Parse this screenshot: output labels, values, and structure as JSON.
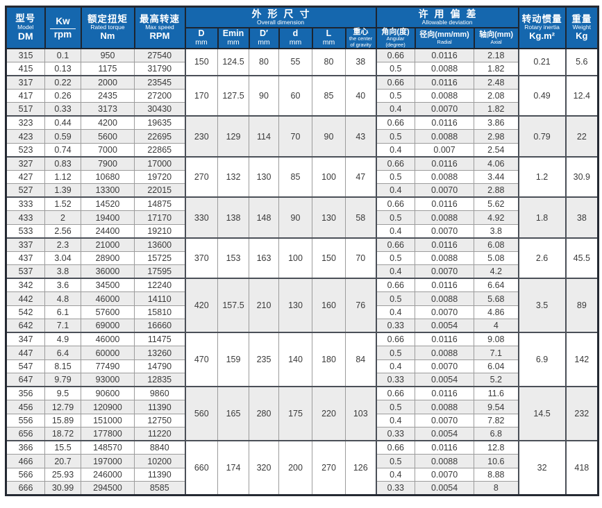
{
  "colors": {
    "header_bg": "#1567ae",
    "header_text": "#ffffff",
    "row_stripe": "#ececec",
    "grid_dark": "#4a4f57",
    "grid_light": "#9b9b9b",
    "outer_border": "#242932"
  },
  "header": {
    "model": {
      "zh": "型号",
      "en": "Model",
      "code": "DM"
    },
    "kw_top": "Kw",
    "kw_bottom": "rpm",
    "torque": {
      "zh": "额定扭矩",
      "en": "Rated torque",
      "unit": "Nm"
    },
    "maxspeed": {
      "zh": "最高转速",
      "en": "Max speed",
      "unit": "RPM"
    },
    "dims": {
      "zh": "外形尺寸",
      "en": "Overall dimension",
      "cols": [
        {
          "top": "D",
          "bottom": "mm"
        },
        {
          "top": "Emin",
          "bottom": "mm"
        },
        {
          "top": "D′",
          "bottom": "mm"
        },
        {
          "top": "d",
          "bottom": "mm"
        },
        {
          "top": "L",
          "bottom": "mm"
        },
        {
          "top": "重心",
          "bottom": "the center",
          "bottom2": "of gravity"
        }
      ]
    },
    "deviation": {
      "zh": "许用偏差",
      "en": "Allowable deviation",
      "cols": [
        {
          "top": "角向(度)",
          "bottom": "Angular",
          "bottom2": "(degree)"
        },
        {
          "top": "径向(mm/mm)",
          "bottom": "Radial"
        },
        {
          "top": "轴向(mm)",
          "bottom": "Axial"
        }
      ]
    },
    "inertia": {
      "zh": "转动惯量",
      "en": "Rotary inertia",
      "unit": "Kg.m²"
    },
    "weight": {
      "zh": "重量",
      "en": "Weight",
      "unit": "Kg"
    }
  },
  "table": {
    "groups": [
      {
        "dims": [
          "150",
          "124.5",
          "80",
          "55",
          "80",
          "38"
        ],
        "inertia": "0.21",
        "weight": "5.6",
        "rows": [
          {
            "model": "315",
            "kw": "0.1",
            "torque": "950",
            "rpm": "27540",
            "angular": "0.66",
            "radial": "0.0116",
            "axial": "2.18"
          },
          {
            "model": "415",
            "kw": "0.13",
            "torque": "1175",
            "rpm": "31790",
            "angular": "0.5",
            "radial": "0.0088",
            "axial": "1.82"
          }
        ]
      },
      {
        "dims": [
          "170",
          "127.5",
          "90",
          "60",
          "85",
          "40"
        ],
        "inertia": "0.49",
        "weight": "12.4",
        "rows": [
          {
            "model": "317",
            "kw": "0.22",
            "torque": "2000",
            "rpm": "23545",
            "angular": "0.66",
            "radial": "0.0116",
            "axial": "2.48"
          },
          {
            "model": "417",
            "kw": "0.26",
            "torque": "2435",
            "rpm": "27200",
            "angular": "0.5",
            "radial": "0.0088",
            "axial": "2.08"
          },
          {
            "model": "517",
            "kw": "0.33",
            "torque": "3173",
            "rpm": "30430",
            "angular": "0.4",
            "radial": "0.0070",
            "axial": "1.82"
          }
        ]
      },
      {
        "dims": [
          "230",
          "129",
          "114",
          "70",
          "90",
          "43"
        ],
        "inertia": "0.79",
        "weight": "22",
        "rows": [
          {
            "model": "323",
            "kw": "0.44",
            "torque": "4200",
            "rpm": "19635",
            "angular": "0.66",
            "radial": "0.0116",
            "axial": "3.86"
          },
          {
            "model": "423",
            "kw": "0.59",
            "torque": "5600",
            "rpm": "22695",
            "angular": "0.5",
            "radial": "0.0088",
            "axial": "2.98"
          },
          {
            "model": "523",
            "kw": "0.74",
            "torque": "7000",
            "rpm": "22865",
            "angular": "0.4",
            "radial": "0.007",
            "axial": "2.54"
          }
        ]
      },
      {
        "dims": [
          "270",
          "132",
          "130",
          "85",
          "100",
          "47"
        ],
        "inertia": "1.2",
        "weight": "30.9",
        "rows": [
          {
            "model": "327",
            "kw": "0.83",
            "torque": "7900",
            "rpm": "17000",
            "angular": "0.66",
            "radial": "0.0116",
            "axial": "4.06"
          },
          {
            "model": "427",
            "kw": "1.12",
            "torque": "10680",
            "rpm": "19720",
            "angular": "0.5",
            "radial": "0.0088",
            "axial": "3.44"
          },
          {
            "model": "527",
            "kw": "1.39",
            "torque": "13300",
            "rpm": "22015",
            "angular": "0.4",
            "radial": "0.0070",
            "axial": "2.88"
          }
        ]
      },
      {
        "dims": [
          "330",
          "138",
          "148",
          "90",
          "130",
          "58"
        ],
        "inertia": "1.8",
        "weight": "38",
        "rows": [
          {
            "model": "333",
            "kw": "1.52",
            "torque": "14520",
            "rpm": "14875",
            "angular": "0.66",
            "radial": "0.0116",
            "axial": "5.62"
          },
          {
            "model": "433",
            "kw": "2",
            "torque": "19400",
            "rpm": "17170",
            "angular": "0.5",
            "radial": "0.0088",
            "axial": "4.92"
          },
          {
            "model": "533",
            "kw": "2.56",
            "torque": "24400",
            "rpm": "19210",
            "angular": "0.4",
            "radial": "0.0070",
            "axial": "3.8"
          }
        ]
      },
      {
        "dims": [
          "370",
          "153",
          "163",
          "100",
          "150",
          "70"
        ],
        "inertia": "2.6",
        "weight": "45.5",
        "rows": [
          {
            "model": "337",
            "kw": "2.3",
            "torque": "21000",
            "rpm": "13600",
            "angular": "0.66",
            "radial": "0.0116",
            "axial": "6.08"
          },
          {
            "model": "437",
            "kw": "3.04",
            "torque": "28900",
            "rpm": "15725",
            "angular": "0.5",
            "radial": "0.0088",
            "axial": "5.08"
          },
          {
            "model": "537",
            "kw": "3.8",
            "torque": "36000",
            "rpm": "17595",
            "angular": "0.4",
            "radial": "0.0070",
            "axial": "4.2"
          }
        ]
      },
      {
        "dims": [
          "420",
          "157.5",
          "210",
          "130",
          "160",
          "76"
        ],
        "inertia": "3.5",
        "weight": "89",
        "rows": [
          {
            "model": "342",
            "kw": "3.6",
            "torque": "34500",
            "rpm": "12240",
            "angular": "0.66",
            "radial": "0.0116",
            "axial": "6.64"
          },
          {
            "model": "442",
            "kw": "4.8",
            "torque": "46000",
            "rpm": "14110",
            "angular": "0.5",
            "radial": "0.0088",
            "axial": "5.68"
          },
          {
            "model": "542",
            "kw": "6.1",
            "torque": "57600",
            "rpm": "15810",
            "angular": "0.4",
            "radial": "0.0070",
            "axial": "4.86"
          },
          {
            "model": "642",
            "kw": "7.1",
            "torque": "69000",
            "rpm": "16660",
            "angular": "0.33",
            "radial": "0.0054",
            "axial": "4"
          }
        ]
      },
      {
        "dims": [
          "470",
          "159",
          "235",
          "140",
          "180",
          "84"
        ],
        "inertia": "6.9",
        "weight": "142",
        "rows": [
          {
            "model": "347",
            "kw": "4.9",
            "torque": "46000",
            "rpm": "11475",
            "angular": "0.66",
            "radial": "0.0116",
            "axial": "9.08"
          },
          {
            "model": "447",
            "kw": "6.4",
            "torque": "60000",
            "rpm": "13260",
            "angular": "0.5",
            "radial": "0.0088",
            "axial": "7.1"
          },
          {
            "model": "547",
            "kw": "8.15",
            "torque": "77490",
            "rpm": "14790",
            "angular": "0.4",
            "radial": "0.0070",
            "axial": "6.04"
          },
          {
            "model": "647",
            "kw": "9.79",
            "torque": "93000",
            "rpm": "12835",
            "angular": "0.33",
            "radial": "0.0054",
            "axial": "5.2"
          }
        ]
      },
      {
        "dims": [
          "560",
          "165",
          "280",
          "175",
          "220",
          "103"
        ],
        "inertia": "14.5",
        "weight": "232",
        "rows": [
          {
            "model": "356",
            "kw": "9.5",
            "torque": "90600",
            "rpm": "9860",
            "angular": "0.66",
            "radial": "0.0116",
            "axial": "11.6"
          },
          {
            "model": "456",
            "kw": "12.79",
            "torque": "120900",
            "rpm": "11390",
            "angular": "0.5",
            "radial": "0.0088",
            "axial": "9.54"
          },
          {
            "model": "556",
            "kw": "15.89",
            "torque": "151000",
            "rpm": "12750",
            "angular": "0.4",
            "radial": "0.0070",
            "axial": "7.82"
          },
          {
            "model": "656",
            "kw": "18.72",
            "torque": "177800",
            "rpm": "11220",
            "angular": "0.33",
            "radial": "0.0054",
            "axial": "6.8"
          }
        ]
      },
      {
        "dims": [
          "660",
          "174",
          "320",
          "200",
          "270",
          "126"
        ],
        "inertia": "32",
        "weight": "418",
        "rows": [
          {
            "model": "366",
            "kw": "15.5",
            "torque": "148570",
            "rpm": "8840",
            "angular": "0.66",
            "radial": "0.0116",
            "axial": "12.8"
          },
          {
            "model": "466",
            "kw": "20.7",
            "torque": "197000",
            "rpm": "10200",
            "angular": "0.5",
            "radial": "0.0088",
            "axial": "10.6"
          },
          {
            "model": "566",
            "kw": "25.93",
            "torque": "246000",
            "rpm": "11390",
            "angular": "0.4",
            "radial": "0.0070",
            "axial": "8.88"
          },
          {
            "model": "666",
            "kw": "30.99",
            "torque": "294500",
            "rpm": "8585",
            "angular": "0.33",
            "radial": "0.0054",
            "axial": "8"
          }
        ]
      }
    ]
  }
}
